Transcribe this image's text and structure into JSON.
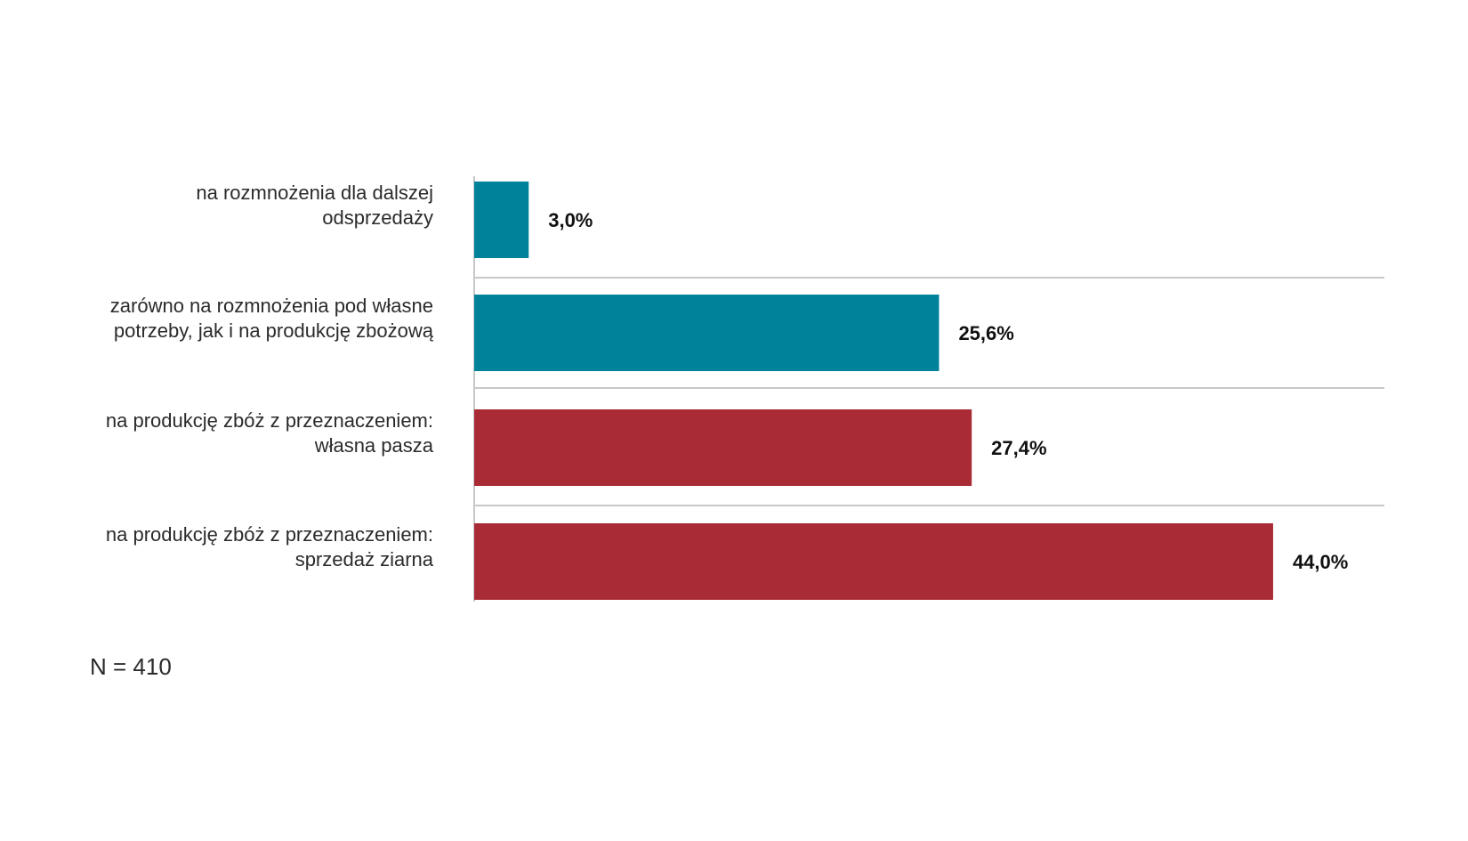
{
  "chart_data": {
    "type": "bar",
    "orientation": "horizontal",
    "categories": [
      [
        "na rozmnożenia dla dalszej",
        "odsprzedaży"
      ],
      [
        "zarówno na rozmnożenia pod własne",
        "potrzeby, jak i na produkcję zbożową"
      ],
      [
        "na produkcję zbóż z przeznaczeniem:",
        "własna pasza"
      ],
      [
        "na produkcję zbóż z przeznaczeniem:",
        "sprzedaż ziarna"
      ]
    ],
    "values": [
      3.0,
      25.6,
      27.4,
      44.0
    ],
    "value_labels": [
      "3,0%",
      "25,6%",
      "27,4%",
      "44,0%"
    ],
    "bar_colors": [
      "#00829b",
      "#00829b",
      "#a82b35",
      "#a82b35"
    ],
    "xlim": [
      0,
      49
    ],
    "title": "",
    "xlabel": "",
    "ylabel": ""
  },
  "note": "N = 410",
  "colors": {
    "teal": "#00829b",
    "red": "#a82b35",
    "gridline": "#c8c8c8"
  }
}
